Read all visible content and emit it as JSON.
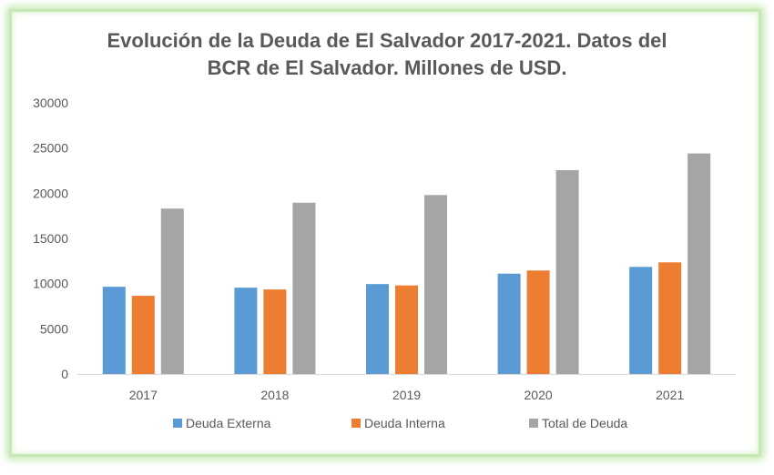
{
  "chart_data": {
    "type": "bar",
    "title_line1": "Evolución de la Deuda de El Salvador 2017-2021. Datos del",
    "title_line2": "BCR de El Salvador. Millones de USD.",
    "categories": [
      "2017",
      "2018",
      "2019",
      "2020",
      "2021"
    ],
    "series": [
      {
        "name": "Deuda Externa",
        "color": "#5b9bd5",
        "values": [
          9650,
          9550,
          9950,
          11100,
          11850
        ]
      },
      {
        "name": "Deuda Interna",
        "color": "#ed7d31",
        "values": [
          8650,
          9350,
          9800,
          11450,
          12350
        ]
      },
      {
        "name": "Total de Deuda",
        "color": "#a5a5a5",
        "values": [
          18300,
          18950,
          19800,
          22550,
          24400
        ]
      }
    ],
    "ylim": [
      0,
      30000
    ],
    "yticks": [
      "30000",
      "25000",
      "20000",
      "15000",
      "10000",
      "5000",
      "0"
    ],
    "ytick_values": [
      30000,
      25000,
      20000,
      15000,
      10000,
      5000,
      0
    ],
    "grid": false,
    "legend_position": "bottom",
    "xlabel": "",
    "ylabel": ""
  }
}
